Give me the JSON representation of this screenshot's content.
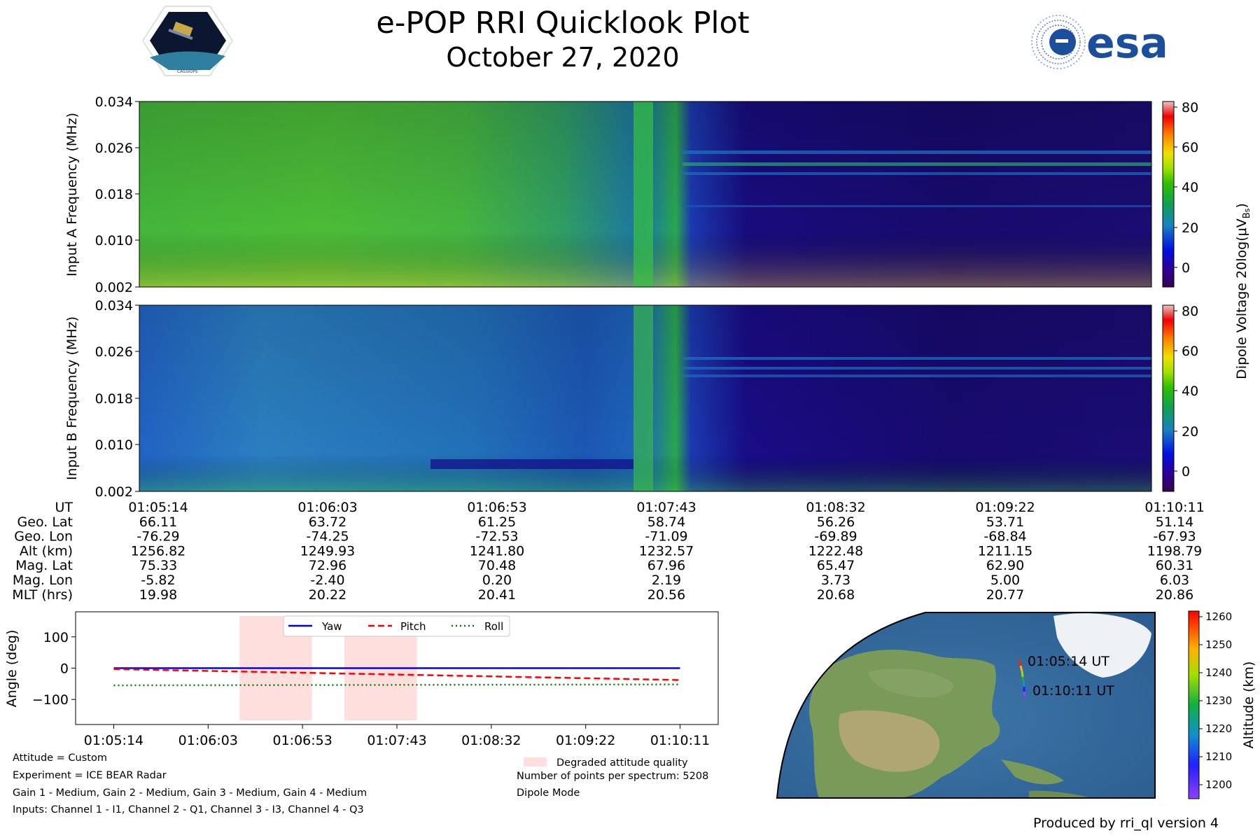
{
  "header": {
    "title": "e-POP RRI Quicklook Plot",
    "date": "October 27, 2020",
    "esa_logo_text": "esa",
    "cassiope_logo_text": "CASSIOPE"
  },
  "colors": {
    "yaw": "#0000ff",
    "pitch": "#ff0000",
    "roll": "#008000",
    "degraded": "#ffdede"
  },
  "chart_data": [
    {
      "type": "heatmap",
      "name": "Input A spectrogram",
      "ylabel": "Input A Frequency (MHz)",
      "y_ticks": [
        "0.002",
        "0.010",
        "0.018",
        "0.026",
        "0.034"
      ],
      "ylim": [
        0.002,
        0.034
      ]
    },
    {
      "type": "heatmap",
      "name": "Input B spectrogram",
      "ylabel": "Input B Frequency (MHz)",
      "y_ticks": [
        "0.002",
        "0.010",
        "0.018",
        "0.026",
        "0.034"
      ],
      "ylim": [
        0.002,
        0.034
      ]
    },
    {
      "type": "table",
      "name": "Orbit ephemeris",
      "row_labels": [
        "UT",
        "Geo. Lat",
        "Geo. Lon",
        "Alt (km)",
        "Mag. Lat",
        "Mag. Lon",
        "MLT (hrs)"
      ],
      "columns": [
        [
          "01:05:14",
          "66.11",
          "-76.29",
          "1256.82",
          "75.33",
          "-5.82",
          "19.98"
        ],
        [
          "01:06:03",
          "63.72",
          "-74.25",
          "1249.93",
          "72.96",
          "-2.40",
          "20.22"
        ],
        [
          "01:06:53",
          "61.25",
          "-72.53",
          "1241.80",
          "70.48",
          "0.20",
          "20.41"
        ],
        [
          "01:07:43",
          "58.74",
          "-71.09",
          "1232.57",
          "67.96",
          "2.19",
          "20.56"
        ],
        [
          "01:08:32",
          "56.26",
          "-69.89",
          "1222.48",
          "65.47",
          "3.73",
          "20.68"
        ],
        [
          "01:09:22",
          "53.71",
          "-68.84",
          "1211.15",
          "62.90",
          "5.00",
          "20.77"
        ],
        [
          "01:10:11",
          "51.14",
          "-67.93",
          "1198.79",
          "60.31",
          "6.03",
          "20.86"
        ]
      ]
    },
    {
      "type": "line",
      "name": "Attitude",
      "ylabel": "Angle (deg)",
      "ylim": [
        -180,
        180
      ],
      "y_ticks": [
        "100",
        "0",
        "−100"
      ],
      "y_tick_values": [
        100,
        0,
        -100
      ],
      "x_ticks": [
        "01:05:14",
        "01:06:03",
        "01:06:53",
        "01:07:43",
        "01:08:32",
        "01:09:22",
        "01:10:11"
      ],
      "xlim_seconds": [
        -20,
        317
      ],
      "x": [
        0,
        297
      ],
      "series": [
        {
          "name": "Yaw",
          "style": "solid",
          "values": [
            0,
            0
          ]
        },
        {
          "name": "Pitch",
          "style": "dashed",
          "values": [
            -3,
            -38
          ]
        },
        {
          "name": "Roll",
          "style": "dotted",
          "values": [
            -55,
            -52
          ]
        }
      ],
      "degraded_spans": [
        [
          66,
          104
        ],
        [
          121,
          159
        ]
      ],
      "degraded_label": "Degraded attitude quality"
    },
    {
      "type": "scatter",
      "name": "Ground track map",
      "start_label": "01:05:14 UT",
      "end_label": "01:10:11 UT",
      "colorbar_label": "Altitude (km)",
      "colorbar_ticks": [
        "1260",
        "1250",
        "1240",
        "1230",
        "1220",
        "1210",
        "1200"
      ],
      "colorbar_range": [
        1195,
        1262
      ]
    }
  ],
  "colorbar_spectrogram": {
    "label": "Dipole Voltage 20log(μV",
    "label_sub": "B",
    "label_sub2": "s",
    "label_close": ")",
    "ticks": [
      "80",
      "60",
      "40",
      "20",
      "0"
    ],
    "range": [
      -10,
      82
    ]
  },
  "footnotes": {
    "attitude": "Attitude = Custom",
    "experiment": "Experiment = ICE BEAR Radar",
    "gains": "Gain 1 - Medium, Gain 2 - Medium, Gain 3 - Medium, Gain 4 - Medium",
    "inputs": "Inputs: Channel 1 - I1, Channel 2 - Q1, Channel 3 - I3, Channel 4 - Q3",
    "points": "Number of points per spectrum: 5208",
    "mode": "Dipole Mode",
    "produced_by": "Produced by rri_ql version 4"
  }
}
